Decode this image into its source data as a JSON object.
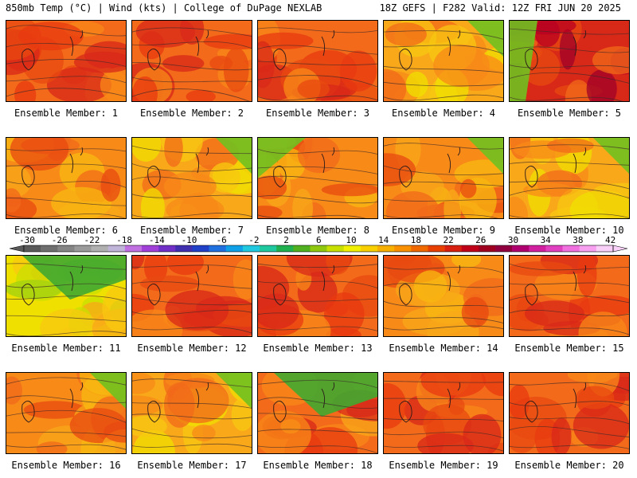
{
  "header": {
    "left": "850mb Temp (°C) | Wind (kts) | College of DuPage NEXLAB",
    "right": "18Z GEFS | F282 Valid: 12Z FRI JUN 20 2025"
  },
  "panel_label_prefix": "Ensemble Member: ",
  "panels": [
    {
      "member": 1,
      "label": "Ensemble Member: 1",
      "dominant": "red-orange",
      "cool_corner": "none"
    },
    {
      "member": 2,
      "label": "Ensemble Member: 2",
      "dominant": "red-orange",
      "cool_corner": "none"
    },
    {
      "member": 3,
      "label": "Ensemble Member: 3",
      "dominant": "red-orange",
      "cool_corner": "none"
    },
    {
      "member": 4,
      "label": "Ensemble Member: 4",
      "dominant": "orange-yellow",
      "cool_corner": "top-right"
    },
    {
      "member": 5,
      "label": "Ensemble Member: 5",
      "dominant": "dark-red",
      "cool_corner": "left"
    },
    {
      "member": 6,
      "label": "Ensemble Member: 6",
      "dominant": "orange",
      "cool_corner": "none"
    },
    {
      "member": 7,
      "label": "Ensemble Member: 7",
      "dominant": "orange-yellow",
      "cool_corner": "top-right"
    },
    {
      "member": 8,
      "label": "Ensemble Member: 8",
      "dominant": "orange",
      "cool_corner": "top-left"
    },
    {
      "member": 9,
      "label": "Ensemble Member: 9",
      "dominant": "orange",
      "cool_corner": "top-right"
    },
    {
      "member": 10,
      "label": "Ensemble Member: 10",
      "dominant": "orange-yellow",
      "cool_corner": "top-right"
    },
    {
      "member": 11,
      "label": "Ensemble Member: 11",
      "dominant": "yellow-green",
      "cool_corner": "top"
    },
    {
      "member": 12,
      "label": "Ensemble Member: 12",
      "dominant": "red-orange",
      "cool_corner": "none"
    },
    {
      "member": 13,
      "label": "Ensemble Member: 13",
      "dominant": "red-orange",
      "cool_corner": "none"
    },
    {
      "member": 14,
      "label": "Ensemble Member: 14",
      "dominant": "orange",
      "cool_corner": "none"
    },
    {
      "member": 15,
      "label": "Ensemble Member: 15",
      "dominant": "red-orange",
      "cool_corner": "none"
    },
    {
      "member": 16,
      "label": "Ensemble Member: 16",
      "dominant": "orange",
      "cool_corner": "top-right"
    },
    {
      "member": 17,
      "label": "Ensemble Member: 17",
      "dominant": "orange-yellow",
      "cool_corner": "top-right"
    },
    {
      "member": 18,
      "label": "Ensemble Member: 18",
      "dominant": "orange-red",
      "cool_corner": "top"
    },
    {
      "member": 19,
      "label": "Ensemble Member: 19",
      "dominant": "red-orange",
      "cool_corner": "none"
    },
    {
      "member": 20,
      "label": "Ensemble Member: 20",
      "dominant": "red-orange",
      "cool_corner": "none"
    }
  ],
  "colorbar": {
    "labels": [
      "-30",
      "-26",
      "-22",
      "-18",
      "-14",
      "-10",
      "-6",
      "-2",
      "2",
      "6",
      "10",
      "14",
      "18",
      "22",
      "26",
      "30",
      "34",
      "38",
      "42"
    ],
    "colors": [
      "#5a5a5a",
      "#6f6f6f",
      "#858585",
      "#9a9a9a",
      "#b0b0b0",
      "#c0b4d8",
      "#c070e0",
      "#a040d8",
      "#7030c8",
      "#4030b0",
      "#2040c8",
      "#2070e0",
      "#10a0e8",
      "#20c8e0",
      "#20c8a0",
      "#20b050",
      "#50b020",
      "#90c810",
      "#c8e000",
      "#f0f000",
      "#f8d000",
      "#f8b000",
      "#f89000",
      "#f06800",
      "#e84000",
      "#d82010",
      "#c00018",
      "#a00020",
      "#900040",
      "#b00070",
      "#d020a0",
      "#e040c0",
      "#f070e0",
      "#f8a0f0",
      "#f8d0f8"
    ]
  }
}
